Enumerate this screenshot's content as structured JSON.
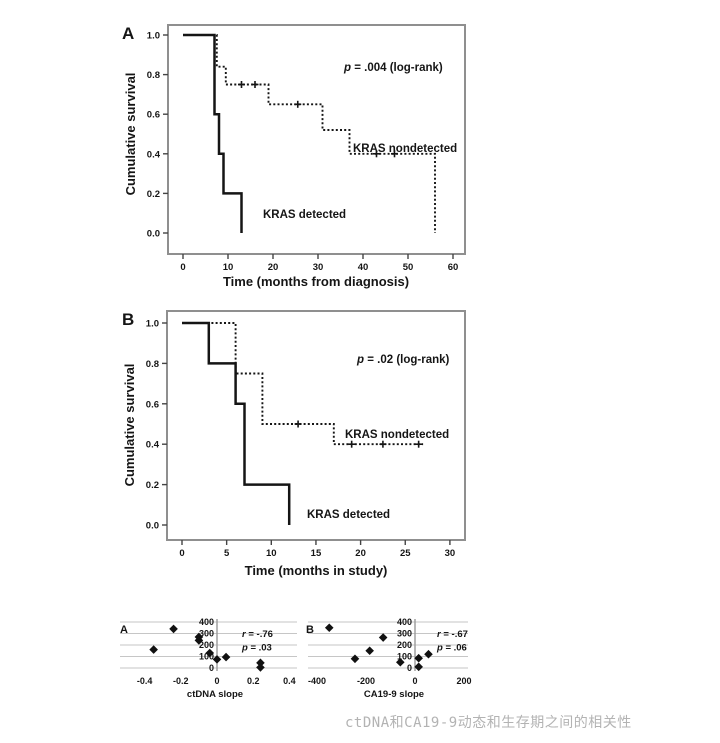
{
  "figure": {
    "caption": "ctDNA和CA19-9动态和生存期之间的相关性"
  },
  "chart_data": [
    {
      "id": "km_a",
      "type": "line",
      "subtype": "kaplan-meier",
      "panel_label": "A",
      "xlabel": "Time (months from diagnosis)",
      "ylabel": "Cumulative survival",
      "annotation": "p = .004 (log-rank)",
      "xtick_labels": [
        "0",
        "10",
        "20",
        "30",
        "40",
        "50",
        "60"
      ],
      "xtick_values": [
        0,
        10,
        20,
        30,
        40,
        50,
        60
      ],
      "ytick_labels": [
        "0.0",
        "0.2",
        "0.4",
        "0.6",
        "0.8",
        "1.0"
      ],
      "ytick_values": [
        0,
        0.2,
        0.4,
        0.6,
        0.8,
        1.0
      ],
      "xlim": [
        0,
        62
      ],
      "ylim": [
        0,
        1
      ],
      "grid": false,
      "series": [
        {
          "name": "KRAS detected",
          "line_style": "solid",
          "steps": [
            [
              0,
              1.0
            ],
            [
              7,
              1.0
            ],
            [
              7,
              0.6
            ],
            [
              8,
              0.6
            ],
            [
              8,
              0.4
            ],
            [
              9,
              0.4
            ],
            [
              9,
              0.2
            ],
            [
              13,
              0.2
            ],
            [
              13,
              0.0
            ]
          ],
          "censor_marks": []
        },
        {
          "name": "KRAS nondetected",
          "line_style": "dotted",
          "steps": [
            [
              0,
              1.0
            ],
            [
              7.5,
              1.0
            ],
            [
              7.5,
              0.84
            ],
            [
              9.5,
              0.84
            ],
            [
              9.5,
              0.75
            ],
            [
              19,
              0.75
            ],
            [
              19,
              0.65
            ],
            [
              31,
              0.65
            ],
            [
              31,
              0.52
            ],
            [
              37,
              0.52
            ],
            [
              37,
              0.4
            ],
            [
              56,
              0.4
            ],
            [
              56,
              0.0
            ]
          ],
          "censor_marks": [
            [
              13,
              0.75
            ],
            [
              16,
              0.75
            ],
            [
              25.5,
              0.65
            ],
            [
              43,
              0.4
            ],
            [
              47,
              0.4
            ]
          ]
        }
      ]
    },
    {
      "id": "km_b",
      "type": "line",
      "subtype": "kaplan-meier",
      "panel_label": "B",
      "xlabel": "Time (months in study)",
      "ylabel": "Cumulative survival",
      "annotation": "p = .02 (log-rank)",
      "xtick_labels": [
        "0",
        "5",
        "10",
        "15",
        "20",
        "25",
        "30"
      ],
      "xtick_values": [
        0,
        5,
        10,
        15,
        20,
        25,
        30
      ],
      "ytick_labels": [
        "0.0",
        "0.2",
        "0.4",
        "0.6",
        "0.8",
        "1.0"
      ],
      "ytick_values": [
        0,
        0.2,
        0.4,
        0.6,
        0.8,
        1.0
      ],
      "xlim": [
        0,
        32
      ],
      "ylim": [
        0,
        1
      ],
      "grid": false,
      "series": [
        {
          "name": "KRAS detected",
          "line_style": "solid",
          "steps": [
            [
              0,
              1.0
            ],
            [
              3,
              1.0
            ],
            [
              3,
              0.8
            ],
            [
              6,
              0.8
            ],
            [
              6,
              0.6
            ],
            [
              7,
              0.6
            ],
            [
              7,
              0.2
            ],
            [
              12,
              0.2
            ],
            [
              12,
              0.0
            ]
          ],
          "censor_marks": []
        },
        {
          "name": "KRAS nondetected",
          "line_style": "dotted",
          "steps": [
            [
              0,
              1.0
            ],
            [
              6,
              1.0
            ],
            [
              6,
              0.75
            ],
            [
              9,
              0.75
            ],
            [
              9,
              0.5
            ],
            [
              17,
              0.5
            ],
            [
              17,
              0.4
            ],
            [
              27,
              0.4
            ]
          ],
          "censor_marks": [
            [
              13,
              0.5
            ],
            [
              19,
              0.4
            ],
            [
              22.5,
              0.4
            ],
            [
              26.5,
              0.4
            ]
          ]
        }
      ]
    },
    {
      "id": "scatter_a",
      "type": "scatter",
      "panel_label": "A",
      "xlabel": "ctDNA slope",
      "annotations": [
        "r = -.76",
        "p = .03"
      ],
      "xtick_labels": [
        "-0.4",
        "-0.2",
        "0",
        "0.2",
        "0.4"
      ],
      "xtick_values": [
        -0.4,
        -0.2,
        0,
        0.2,
        0.4
      ],
      "ytick_labels": [
        "400",
        "300",
        "200",
        "100",
        "0"
      ],
      "ytick_values": [
        400,
        300,
        200,
        100,
        0
      ],
      "xlim": [
        -0.45,
        0.45
      ],
      "ylim": [
        0,
        400
      ],
      "grid": true,
      "points": [
        [
          -0.35,
          160
        ],
        [
          -0.24,
          340
        ],
        [
          -0.1,
          270
        ],
        [
          -0.1,
          240
        ],
        [
          -0.04,
          130
        ],
        [
          0.0,
          75
        ],
        [
          0.05,
          95
        ],
        [
          0.24,
          45
        ],
        [
          0.24,
          5
        ]
      ]
    },
    {
      "id": "scatter_b",
      "type": "scatter",
      "panel_label": "B",
      "xlabel": "CA19-9 slope",
      "annotations": [
        "r = -.67",
        "p = .06"
      ],
      "xtick_labels": [
        "-400",
        "-200",
        "0",
        "200"
      ],
      "xtick_values": [
        -400,
        -200,
        0,
        200
      ],
      "ytick_labels": [
        "400",
        "300",
        "200",
        "100",
        "0"
      ],
      "ytick_values": [
        400,
        300,
        200,
        100,
        0
      ],
      "xlim": [
        -440,
        220
      ],
      "ylim": [
        0,
        400
      ],
      "grid": true,
      "points": [
        [
          -350,
          350
        ],
        [
          -245,
          80
        ],
        [
          -185,
          150
        ],
        [
          -130,
          265
        ],
        [
          -60,
          50
        ],
        [
          15,
          85
        ],
        [
          15,
          10
        ],
        [
          55,
          120
        ]
      ]
    }
  ]
}
